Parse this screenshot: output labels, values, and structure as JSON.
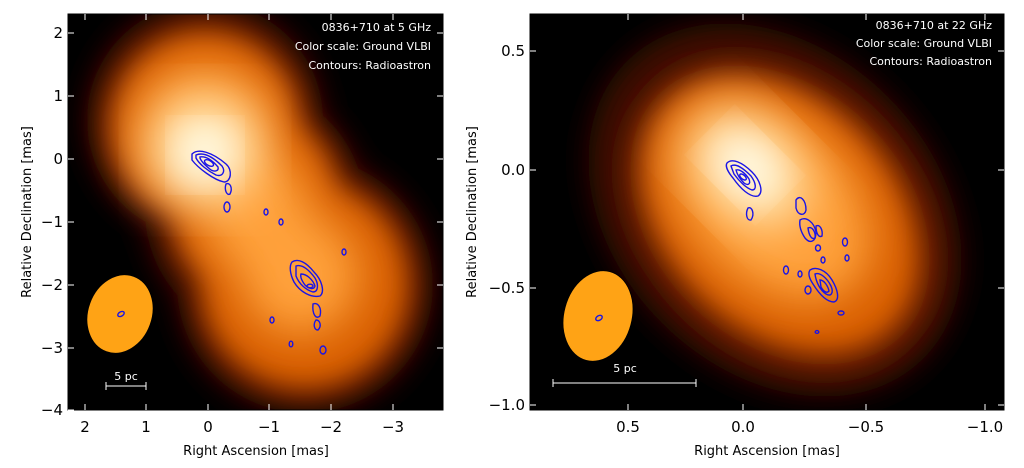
{
  "figures": [
    {
      "id": "left",
      "annotation": [
        "0836+710 at 5 GHz",
        "Color scale: Ground VLBI",
        "Contours: Radioastron"
      ],
      "xlabel": "Right Ascension [mas]",
      "ylabel": "Relative Declination [mas]",
      "xticks": [
        "2",
        "1",
        "0",
        "−1",
        "−2",
        "−3"
      ],
      "yticks": [
        "2",
        "1",
        "0",
        "−1",
        "−2",
        "−3",
        "−4"
      ],
      "scalebar_label": "5 pc"
    },
    {
      "id": "right",
      "annotation": [
        "0836+710 at 22 GHz",
        "Color scale: Ground VLBI",
        "Contours: Radioastron"
      ],
      "xlabel": "Right Ascension [mas]",
      "ylabel": "Relative Declination [mas]",
      "xticks": [
        "0.5",
        "0.0",
        "−0.5",
        "−1.0"
      ],
      "yticks": [
        "0.5",
        "0.0",
        "−0.5",
        "−1.0"
      ],
      "scalebar_label": "5 pc"
    }
  ],
  "colors": {
    "background": "#000000",
    "core": "#fffde0",
    "mid": "#ffb84a",
    "outer": "#e67000",
    "halo": "#5a1000",
    "contours": "#1a14e6",
    "beam": "#ffa315"
  }
}
